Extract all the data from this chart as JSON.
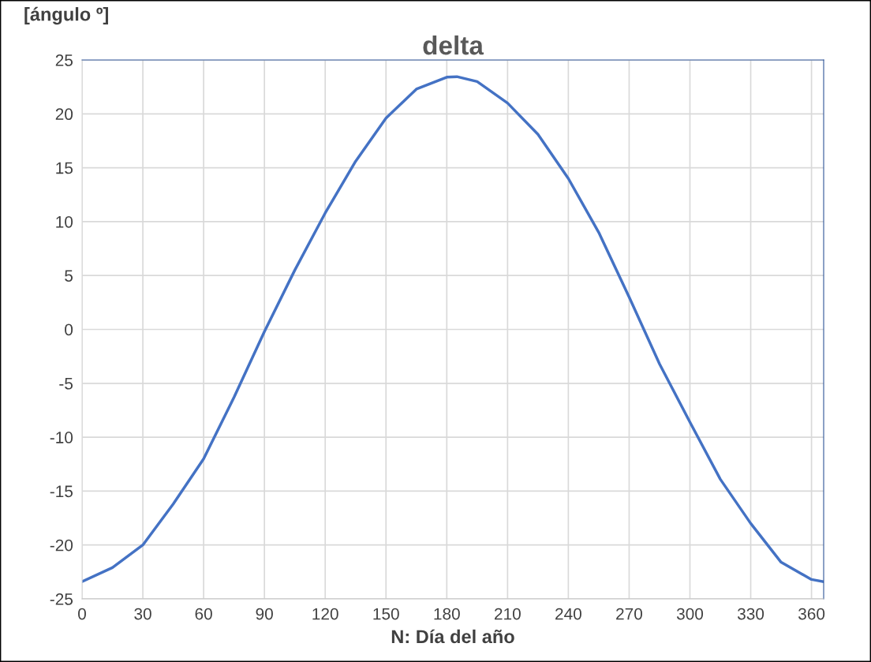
{
  "chart_data": {
    "type": "line",
    "title": "delta",
    "xlabel": "N: Día del año",
    "ylabel": "[ángulo º]",
    "x": [
      0,
      15,
      30,
      45,
      60,
      75,
      90,
      105,
      120,
      135,
      150,
      165,
      180,
      185,
      195,
      210,
      225,
      240,
      255,
      270,
      285,
      300,
      315,
      330,
      345,
      360,
      366
    ],
    "series": [
      {
        "color": "#4472c4",
        "values": [
          -23.4,
          -22.1,
          -20.0,
          -16.2,
          -12.0,
          -6.3,
          -0.2,
          5.5,
          10.8,
          15.6,
          19.6,
          22.3,
          23.4,
          23.45,
          23.0,
          21.0,
          18.1,
          14.0,
          9.0,
          3.0,
          -3.2,
          -8.6,
          -13.9,
          -18.0,
          -21.6,
          -23.2,
          -23.4
        ]
      }
    ],
    "xlim": [
      0,
      366
    ],
    "xticks": [
      0,
      30,
      60,
      90,
      120,
      150,
      180,
      210,
      240,
      270,
      300,
      330,
      360
    ],
    "ylim": [
      -25,
      25
    ],
    "yticks": [
      -25,
      -20,
      -15,
      -10,
      -5,
      0,
      5,
      10,
      15,
      20,
      25
    ],
    "grid": true,
    "marker": "none",
    "line_style": "solid"
  }
}
